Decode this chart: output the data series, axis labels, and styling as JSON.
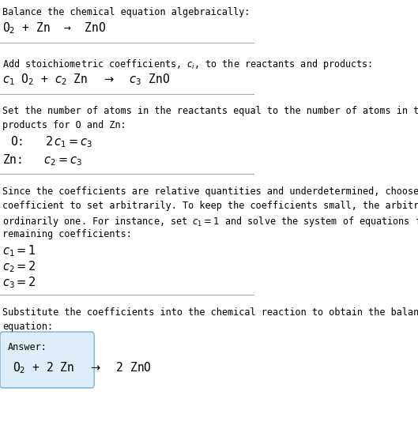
{
  "bg_color": "#ffffff",
  "text_color": "#000000",
  "line_color": "#aaaaaa",
  "answer_box_color": "#d0e8f8",
  "sections": [
    {
      "lines": [
        {
          "type": "normal",
          "text": "Balance the chemical equation algebraically:"
        },
        {
          "type": "math_line1",
          "text": "O_2 + Zn  →  ZnO"
        }
      ],
      "sep_after": true
    },
    {
      "lines": [
        {
          "type": "normal",
          "text": ""
        },
        {
          "type": "normal",
          "text": "Add stoichiometric coefficients, $c_i$, to the reactants and products:"
        },
        {
          "type": "math_line1",
          "text": "$c_1$ O$_2$ + $c_2$ Zn  →  $c_3$ ZnO"
        }
      ],
      "sep_after": true
    },
    {
      "lines": [
        {
          "type": "normal",
          "text": ""
        },
        {
          "type": "normal_wrap",
          "text": "Set the number of atoms in the reactants equal to the number of atoms in the\nproducts for O and Zn:"
        },
        {
          "type": "indent_math",
          "text": "O:   $2\\,c_1 = c_3$"
        },
        {
          "type": "indent_math2",
          "text": "Zn:   $c_2 = c_3$"
        }
      ],
      "sep_after": true
    },
    {
      "lines": [
        {
          "type": "normal",
          "text": ""
        },
        {
          "type": "normal_wrap2",
          "text": "Since the coefficients are relative quantities and underdetermined, choose a\ncoefficient to set arbitrarily. To keep the coefficients small, the arbitrary value is\nordinarily one. For instance, set $c_1 = 1$ and solve the system of equations for the\nremaining coefficients:"
        },
        {
          "type": "math_coeff",
          "text": "$c_1 = 1$"
        },
        {
          "type": "math_coeff",
          "text": "$c_2 = 2$"
        },
        {
          "type": "math_coeff",
          "text": "$c_3 = 2$"
        }
      ],
      "sep_after": true
    },
    {
      "lines": [
        {
          "type": "normal",
          "text": ""
        },
        {
          "type": "normal_wrap",
          "text": "Substitute the coefficients into the chemical reaction to obtain the balanced\nequation:"
        },
        {
          "type": "answer_box",
          "label": "Answer:",
          "equation": "O$_2$ + 2 Zn  →  2 ZnO"
        }
      ],
      "sep_after": false
    }
  ]
}
